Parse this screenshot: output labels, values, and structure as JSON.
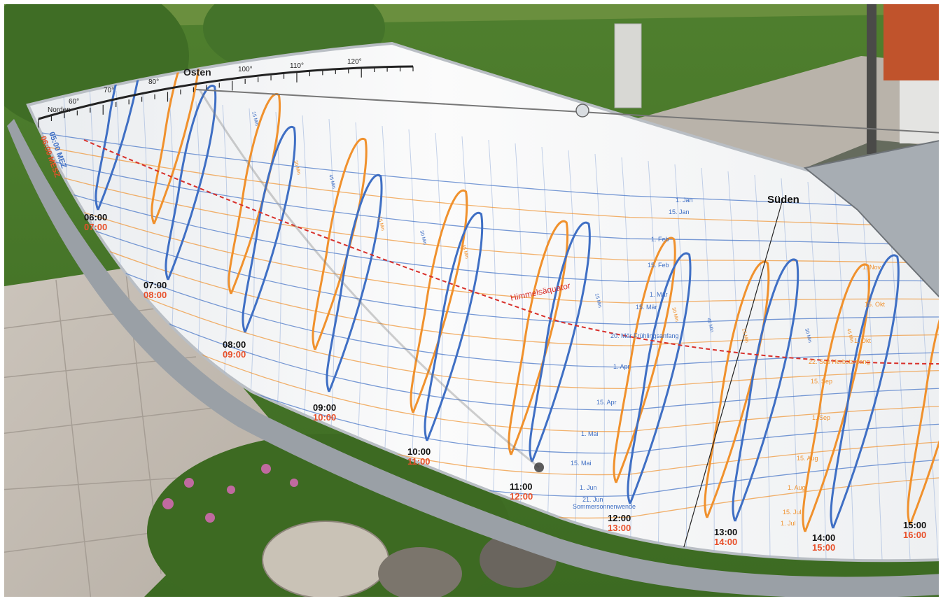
{
  "azimuth_labels": [
    "Norden",
    "60°",
    "70°",
    "80°",
    "Osten",
    "100°",
    "110°",
    "120°"
  ],
  "south_label": "Süden",
  "equator_label": "Himmelsäquator",
  "hours": [
    {
      "mez": "06:00",
      "mesz": "07:00"
    },
    {
      "mez": "07:00",
      "mesz": "08:00"
    },
    {
      "mez": "08:00",
      "mesz": "09:00"
    },
    {
      "mez": "09:00",
      "mesz": "10:00"
    },
    {
      "mez": "10:00",
      "mesz": "11:00"
    },
    {
      "mez": "11:00",
      "mesz": "12:00"
    },
    {
      "mez": "12:00",
      "mesz": "13:00"
    },
    {
      "mez": "13:00",
      "mesz": "14:00"
    },
    {
      "mez": "14:00",
      "mesz": "15:00"
    },
    {
      "mez": "15:00",
      "mesz": "16:00"
    }
  ],
  "first_hour": {
    "mez": "05:00 MEZ",
    "mesz": "06:00 MESZ"
  },
  "dates_left": [
    "1. Jan",
    "15. Jan",
    "1. Feb",
    "15. Feb",
    "1. Mär",
    "15. Mär",
    "20. Mär Frühlingsanfang",
    "1. Apr",
    "15. Apr",
    "1. Mai",
    "15. Mai",
    "1. Jun",
    "21. Jun",
    "Sommersonnenwende"
  ],
  "dates_right": [
    "1. Nov",
    "15. Okt",
    "1. Okt",
    "22. Sep Herbstanfang",
    "15. Sep",
    "1. Sep",
    "15. Aug",
    "1. Aug",
    "15. Jul",
    "1. Jul"
  ],
  "minute_marks": [
    "15 Min",
    "30 Min",
    "45 Min"
  ],
  "colors": {
    "mez": "#3f6fc4",
    "mesz": "#f0912d",
    "mesz_text": "#e8502a",
    "equator": "#d8302b",
    "grass": "#4c7a2c",
    "pavement": "#c4bdb4",
    "panel": "#f4f4f4",
    "rim": "#9aa0a6"
  }
}
